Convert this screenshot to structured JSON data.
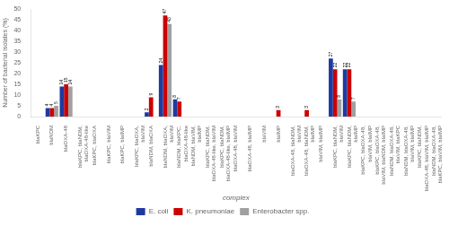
{
  "chart_data": {
    "type": "bar",
    "categories": [
      "blaKPC",
      "blaNDM",
      "blaOXA-48",
      "blaKPC, blaNDM,\nblaOXA-48-like",
      "blaKPC, blaOXA",
      "blaKPC, blaVIM",
      "blaKPC, blaIMP",
      "blaKPC, blaOXA,\nblaVIM",
      "blaNDM, blaOXA",
      "blaNDM, blaOXA,\nblaVIM",
      "blaNDM, blaKPC,\nblaOXA-48-like",
      "blaNDM, blaVIM,\nblaIMP",
      "blaKPC, blaNDM,\nblaOXA-48-like, blaVIM",
      "blaKPC, blaNDM,\nblaOXA-48-like, blaIMP",
      "blaOXA-48, blaVIM",
      "blaOXA-48, blaIMP",
      "blaVIM",
      "blaIMP",
      "blaOXA-48, blaNDM,\nblaVIM",
      "blaOXA-48, blaNDM,\nblaIMP",
      "blaVIM, blaIMP",
      "blaKPC, blaNDM,\nblaVIM",
      "blaKPC, blaNDM,\nblaIMP",
      "blaKPC, blaOXA-48,\nblaVIM, blaIMP",
      "blaKPC, blaOXA-48,\nblaVIM, blaNDM, blaIMP",
      "blaNDM, blaOXA-48,\nblaVIM, blaKPC",
      "blaNDM, blaOXA-48,\nblaVIM, blaIMP",
      "blaKPC, blaNDM,\nblaOXA-48, blaVIM, blaIMP",
      "blaNDM, blaOXA-48,\nblaKPC, blaVIM, blaIMP"
    ],
    "series": [
      {
        "name": "E. coli",
        "color": "#1f3a9e",
        "values": [
          0,
          4,
          14,
          0,
          0,
          0,
          0,
          0,
          2,
          24,
          8,
          0,
          0,
          0,
          0,
          0,
          0,
          0,
          0,
          0,
          0,
          27,
          22,
          0,
          0,
          0,
          0,
          0,
          0
        ]
      },
      {
        "name": "K. pneumoniae",
        "color": "#cc0000",
        "values": [
          0,
          4,
          15,
          0,
          0,
          0,
          0,
          0,
          9,
          47,
          7,
          0,
          0,
          0,
          0,
          0,
          0,
          3,
          0,
          3,
          0,
          22,
          22,
          0,
          0,
          0,
          0,
          0,
          0
        ]
      },
      {
        "name": "Enterobacter spp.",
        "color": "#a0a0a0",
        "values": [
          0,
          5,
          14,
          0,
          0,
          0,
          0,
          0,
          0,
          43,
          0,
          0,
          0,
          0,
          0,
          0,
          0,
          0,
          0,
          0,
          0,
          8,
          7,
          0,
          0,
          0,
          0,
          0,
          0
        ]
      }
    ],
    "ylabel": "Number of bacterial isolates (%)",
    "xlabel": "complex",
    "ylim": [
      0,
      50
    ],
    "yticks": [
      0,
      5,
      10,
      15,
      20,
      25,
      30,
      35,
      40,
      45,
      50
    ],
    "grid": false,
    "legend": "bottom",
    "data_labels": true
  }
}
